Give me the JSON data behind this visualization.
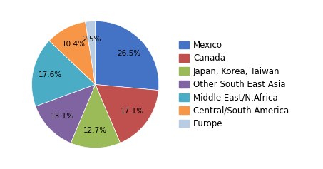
{
  "labels": [
    "Mexico",
    "Canada",
    "Japan, Korea, Taiwan",
    "Other South East Asia",
    "Middle East/N.Africa",
    "Central/South America",
    "Europe"
  ],
  "values": [
    26.4,
    17.1,
    12.7,
    13.1,
    17.6,
    10.4,
    2.5
  ],
  "colors": [
    "#4472C4",
    "#C0504D",
    "#9BBB59",
    "#8064A2",
    "#4BACC6",
    "#F79646",
    "#B8CCE4"
  ],
  "startangle": 90,
  "pct_fontsize": 7.5,
  "legend_fontsize": 8.5,
  "pct_distance": 0.72
}
